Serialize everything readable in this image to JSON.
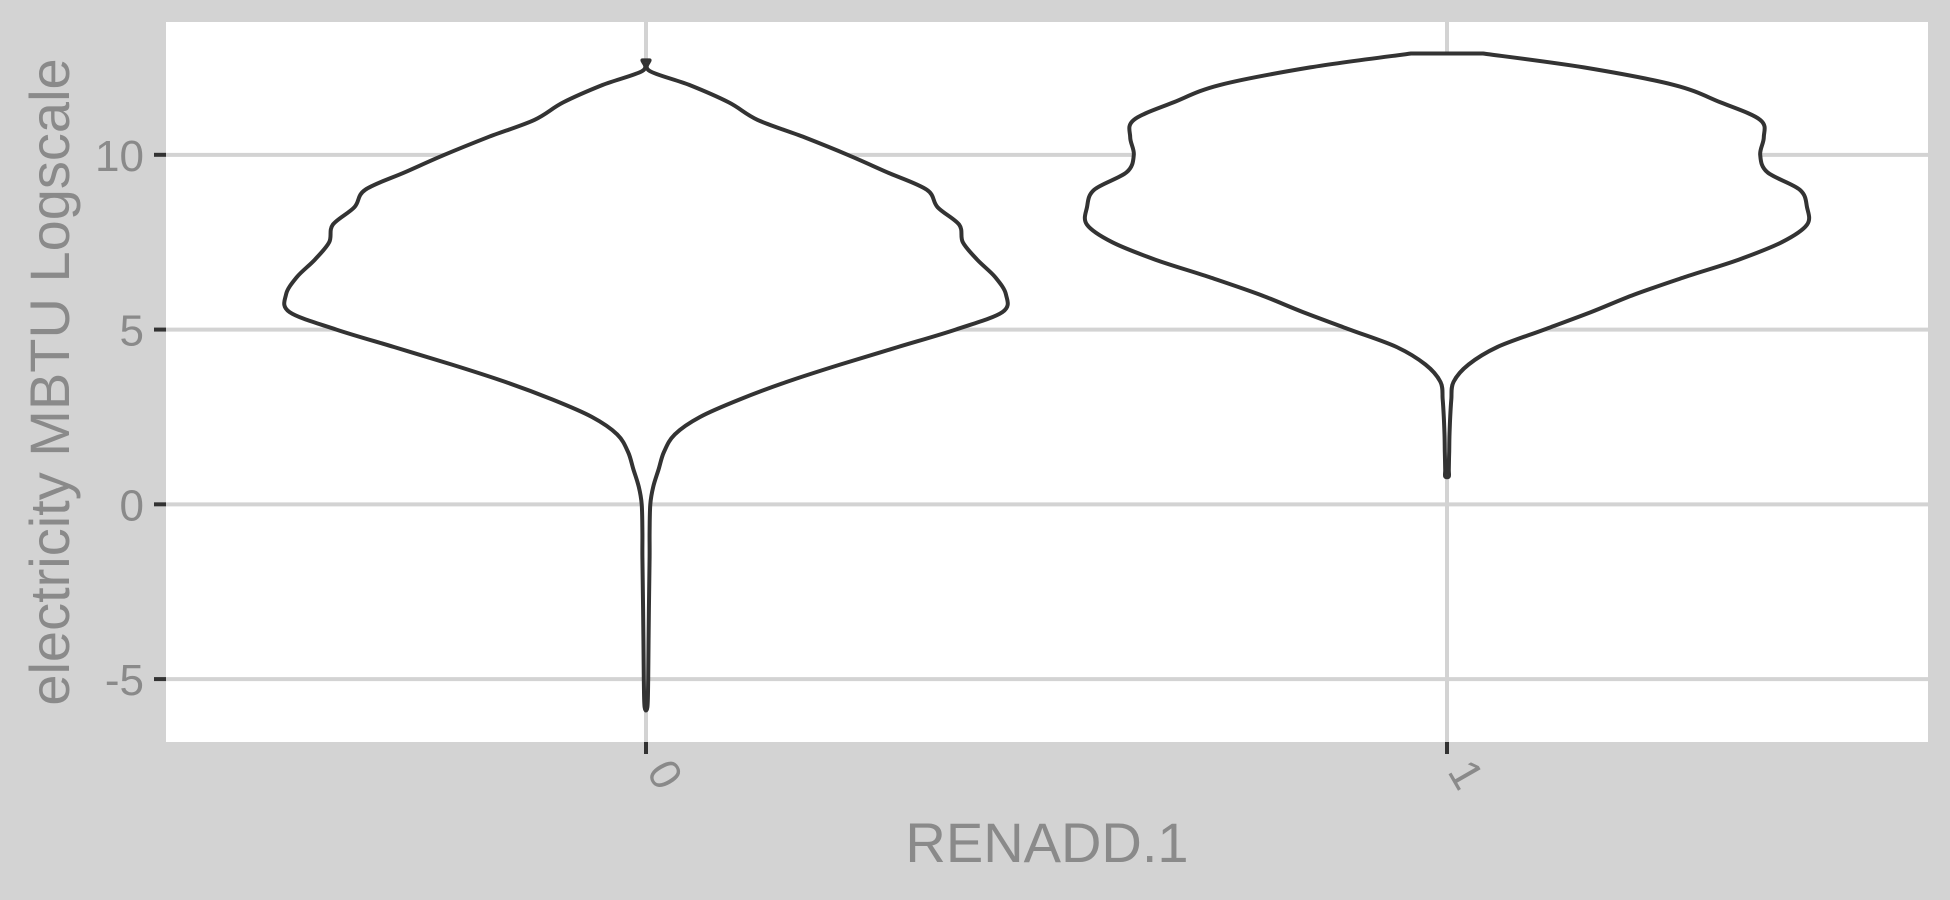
{
  "chart_data": {
    "type": "violin",
    "xlabel": "RENADD.1",
    "ylabel": "electricity MBTU Logscale",
    "categories": [
      "0",
      "1"
    ],
    "yticks": [
      -5,
      0,
      5,
      10
    ],
    "ylim": [
      -6.8,
      13.8
    ],
    "grid": true,
    "colors": {
      "background": "#d3d3d3",
      "panel": "#ffffff",
      "grid": "#d3d3d3",
      "outline": "#333333",
      "text": "#8a8a8a"
    },
    "violins": [
      {
        "category": "0",
        "y": [
          12.7,
          12.4,
          12.0,
          11.5,
          11.0,
          10.5,
          10.0,
          9.5,
          9.0,
          8.5,
          8.0,
          7.5,
          7.0,
          6.5,
          6.0,
          5.5,
          5.0,
          4.5,
          4.0,
          3.5,
          3.0,
          2.5,
          2.0,
          1.5,
          1.0,
          0.5,
          0.0,
          -0.8,
          -1.5,
          -3.0,
          -5.0,
          -5.8
        ],
        "half_width": [
          0.01,
          0.01,
          0.12,
          0.23,
          0.31,
          0.44,
          0.56,
          0.67,
          0.78,
          0.81,
          0.87,
          0.88,
          0.92,
          0.97,
          1.0,
          0.99,
          0.86,
          0.7,
          0.54,
          0.39,
          0.26,
          0.15,
          0.08,
          0.05,
          0.035,
          0.02,
          0.012,
          0.01,
          0.01,
          0.008,
          0.006,
          0.004
        ]
      },
      {
        "category": "1",
        "y": [
          12.9,
          12.5,
          12.0,
          11.5,
          11.0,
          10.5,
          10.0,
          9.5,
          9.0,
          8.5,
          8.0,
          7.5,
          7.0,
          6.5,
          6.0,
          5.5,
          5.0,
          4.5,
          4.0,
          3.5,
          3.0,
          2.5,
          2.0,
          1.5,
          1.0,
          0.8
        ],
        "half_width": [
          0.1,
          0.38,
          0.63,
          0.76,
          0.87,
          0.88,
          0.87,
          0.89,
          0.98,
          1.0,
          1.0,
          0.93,
          0.81,
          0.66,
          0.52,
          0.4,
          0.27,
          0.14,
          0.06,
          0.018,
          0.012,
          0.009,
          0.007,
          0.006,
          0.005,
          0.005
        ]
      }
    ]
  }
}
